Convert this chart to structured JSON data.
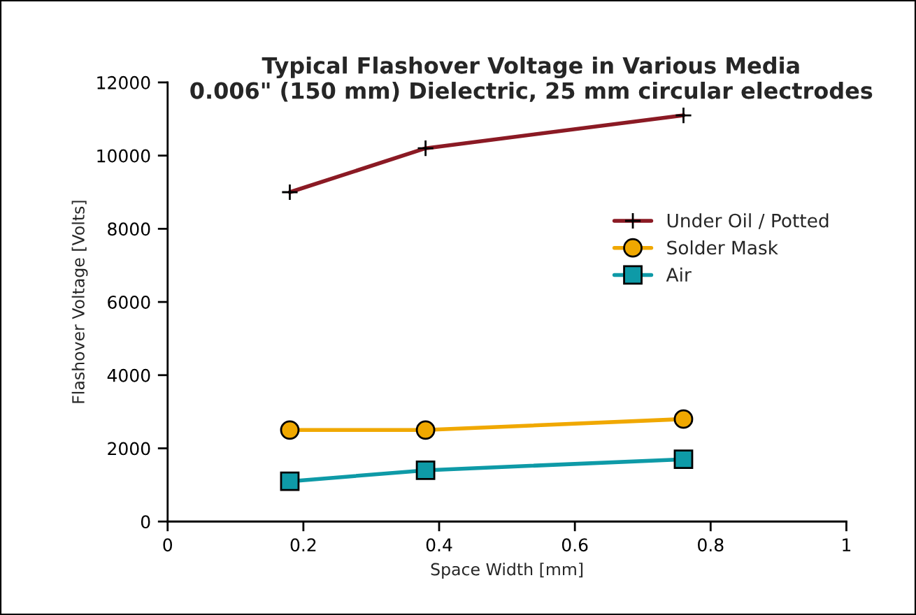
{
  "chart_data": {
    "type": "line",
    "title": "Typical Flashover Voltage in Various Media\n0.006\" (150 mm) Dielectric, 25 mm circular electrodes",
    "xlabel": "Space Width [mm]",
    "ylabel": "Flashover Voltage [Volts]",
    "x": [
      0.18,
      0.38,
      0.76
    ],
    "series": [
      {
        "name": "Under Oil / Potted",
        "color": "#8b1a24",
        "marker": "cross",
        "values": [
          9000,
          10200,
          11100
        ]
      },
      {
        "name": "Solder Mask",
        "color": "#f0a800",
        "marker": "circle",
        "values": [
          2500,
          2500,
          2800
        ]
      },
      {
        "name": "Air",
        "color": "#0e9aa7",
        "marker": "square",
        "values": [
          1100,
          1400,
          1700
        ]
      }
    ],
    "xlim": [
      0,
      1
    ],
    "xticks": [
      0,
      0.2,
      0.4,
      0.6,
      0.8,
      1
    ],
    "ylim": [
      0,
      12000
    ],
    "yticks": [
      0,
      2000,
      4000,
      6000,
      8000,
      10000,
      12000
    ],
    "grid": false,
    "legend": "right",
    "line_style": "solid"
  }
}
